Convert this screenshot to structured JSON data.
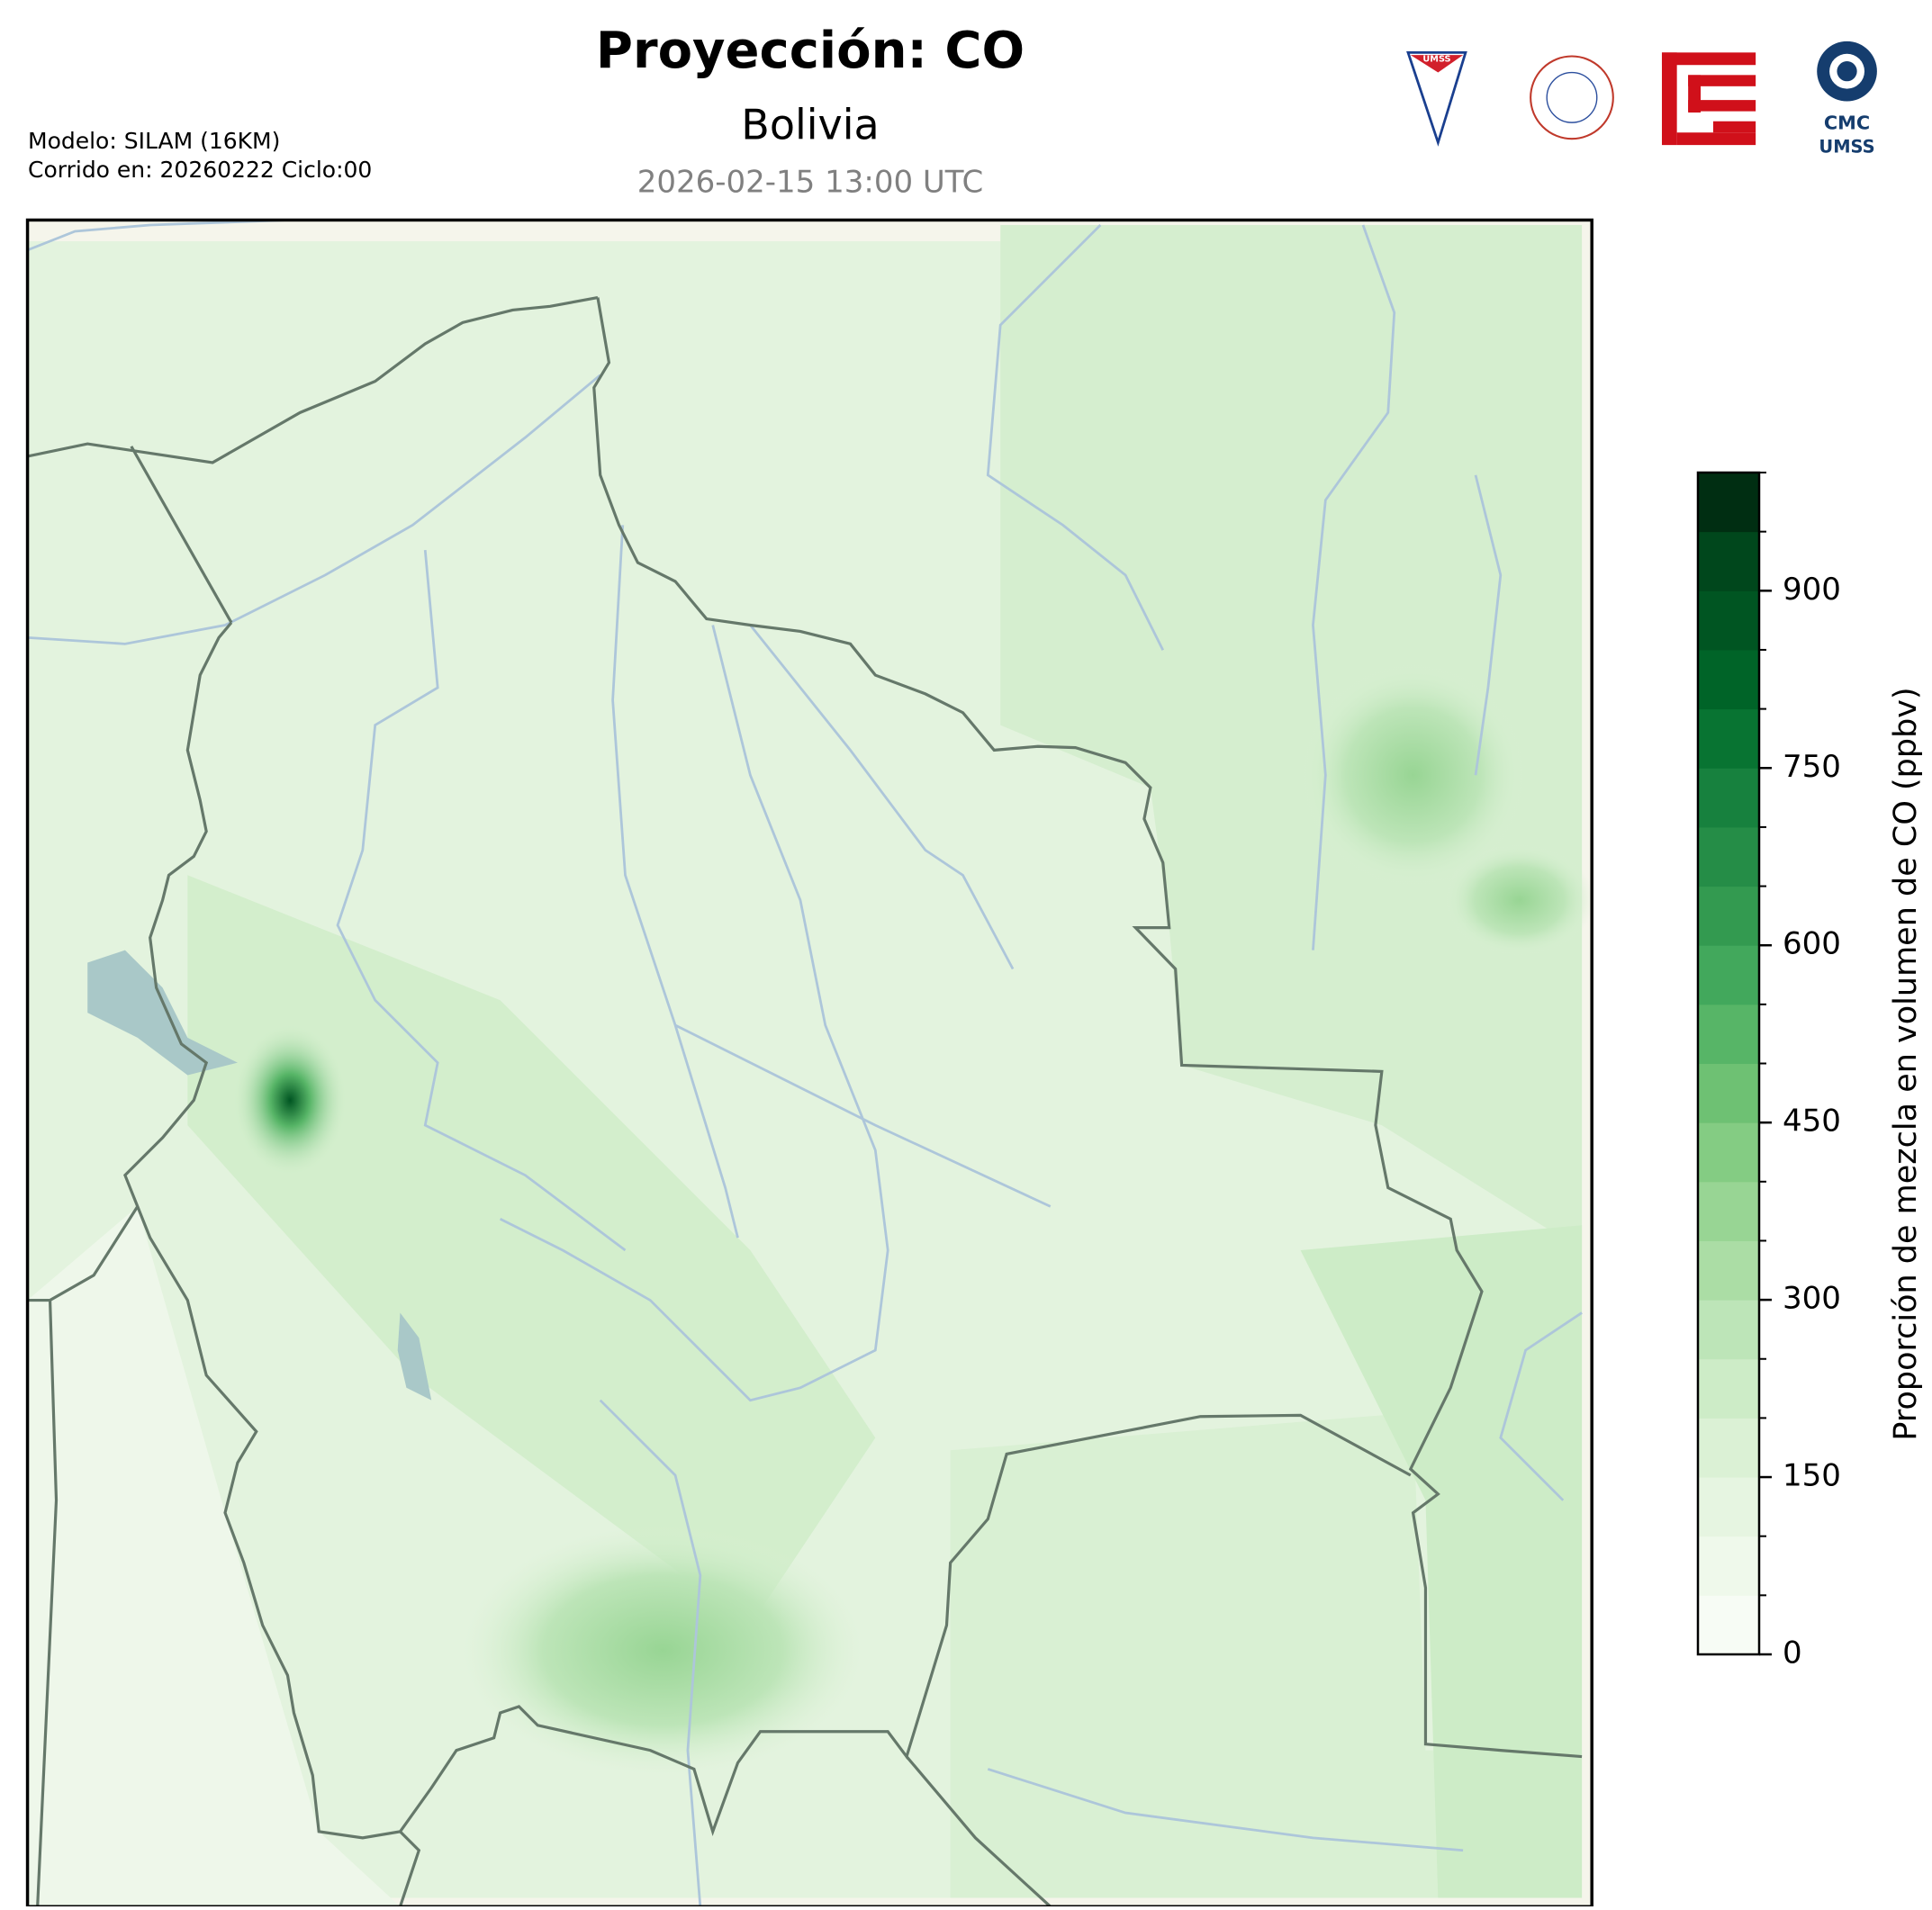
{
  "header": {
    "title": "Proyección: CO",
    "subtitle": "Bolivia",
    "date": "2026-02-15 13:00 UTC"
  },
  "info": [
    "Modelo: SILAM (16KM)",
    "Corrido en: 20260222 Ciclo:00"
  ],
  "logos": {
    "umss": "UMSS",
    "cmc": "CMC",
    "cmc_sub": "UMSS"
  },
  "colorbar": {
    "label": "Proporción de mezcla en volumen de CO (ppbv)",
    "lim": [
      0,
      1000
    ],
    "ticks": [
      0,
      150,
      300,
      450,
      600,
      750,
      900
    ],
    "colors": [
      "#f7fcf5",
      "#eff9eb",
      "#e6f5e1",
      "#dbf1d5",
      "#cdecc7",
      "#bde5b8",
      "#abdda5",
      "#98d594",
      "#84cc83",
      "#6ec173",
      "#57b567",
      "#42a85c",
      "#339a50",
      "#258d47",
      "#17813e",
      "#087432",
      "#006428",
      "#005522",
      "#00471c",
      "#002e12"
    ]
  }
}
